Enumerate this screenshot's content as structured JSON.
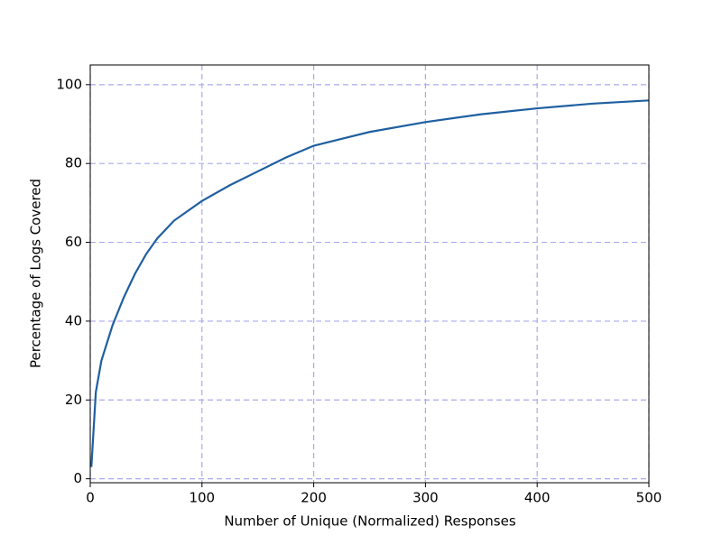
{
  "chart_data": {
    "type": "line",
    "x_label": "Number of Unique (Normalized) Responses",
    "y_label": "Percentage of Logs Covered",
    "x": [
      1,
      5,
      10,
      20,
      30,
      40,
      50,
      60,
      75,
      100,
      125,
      150,
      175,
      200,
      250,
      300,
      350,
      400,
      450,
      500
    ],
    "series": [
      {
        "name": "coverage",
        "color": "#1f5fa0",
        "values": [
          3,
          22,
          30,
          39,
          46,
          52,
          57,
          61,
          65.5,
          70.5,
          74.5,
          78,
          81.5,
          84.5,
          88,
          90.5,
          92.5,
          94,
          95.2,
          96
        ]
      }
    ],
    "xlim": [
      0,
      500
    ],
    "xticks": [
      0,
      100,
      200,
      300,
      400,
      500
    ],
    "ylim": [
      -1,
      105
    ],
    "yticks": [
      0,
      20,
      40,
      60,
      80,
      100
    ],
    "grid": true,
    "grid_color": "#aaaaee"
  }
}
